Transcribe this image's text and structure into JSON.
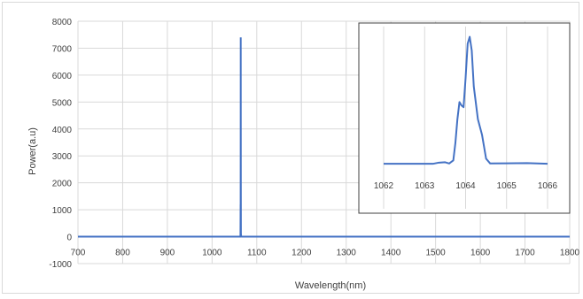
{
  "chart_data": [
    {
      "type": "line",
      "title": "",
      "xlabel": "Wavelength(nm)",
      "ylabel": "Power(a.u)",
      "xlim": [
        700,
        1800
      ],
      "ylim": [
        -1000,
        8000
      ],
      "x_ticks": [
        700,
        800,
        900,
        1000,
        1100,
        1200,
        1300,
        1400,
        1500,
        1600,
        1700,
        1800
      ],
      "y_ticks": [
        -1000,
        0,
        1000,
        2000,
        3000,
        4000,
        5000,
        6000,
        7000,
        8000
      ],
      "grid": true,
      "legend": "none",
      "color": "#4472c4",
      "series": [
        {
          "x": [
            700,
            1000,
            1060,
            1062,
            1063,
            1063.5,
            1063.8,
            1063.9,
            1064.0,
            1064.1,
            1064.2,
            1064.3,
            1064.5,
            1065,
            1066,
            1070,
            1100,
            1400,
            1800
          ],
          "y": [
            0,
            0,
            0,
            0,
            0,
            40,
            1200,
            1100,
            3500,
            7400,
            4000,
            2000,
            120,
            10,
            0,
            0,
            0,
            0,
            0
          ]
        }
      ]
    },
    {
      "type": "line",
      "title": "",
      "inset": true,
      "xlim": [
        1062,
        1066
      ],
      "ylim": [
        -300,
        8000
      ],
      "x_ticks": [
        1062,
        1063,
        1064,
        1065,
        1066
      ],
      "grid": true,
      "legend": "none",
      "color": "#4472c4",
      "series": [
        {
          "x": [
            1062,
            1063.2,
            1063.35,
            1063.5,
            1063.6,
            1063.7,
            1063.75,
            1063.8,
            1063.85,
            1063.9,
            1063.95,
            1064.0,
            1064.05,
            1064.1,
            1064.15,
            1064.2,
            1064.3,
            1064.4,
            1064.5,
            1064.6,
            1065.0,
            1065.5,
            1066
          ],
          "y": [
            0,
            0,
            70,
            90,
            20,
            200,
            1200,
            2600,
            3600,
            3400,
            3300,
            5000,
            7000,
            7400,
            6600,
            4500,
            2600,
            1700,
            300,
            20,
            30,
            40,
            0
          ]
        }
      ]
    }
  ]
}
